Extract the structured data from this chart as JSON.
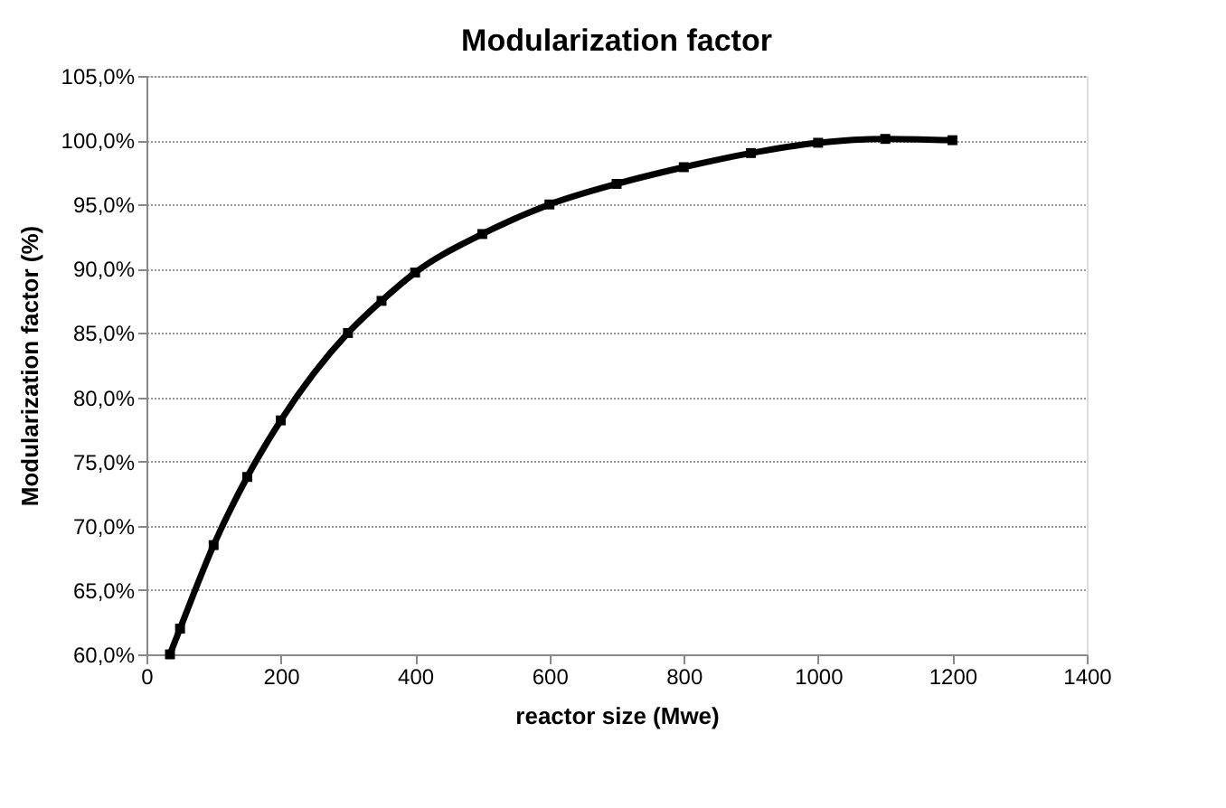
{
  "chart_data": {
    "type": "line",
    "title": "Modularization factor",
    "xlabel": "reactor size (Mwe)",
    "ylabel": "Modularization  factor (%)",
    "x": [
      35,
      50,
      100,
      150,
      200,
      300,
      350,
      400,
      500,
      600,
      700,
      800,
      900,
      1000,
      1100,
      1200
    ],
    "series": [
      {
        "color": "#000000",
        "values": [
          60.0,
          62.0,
          68.5,
          73.8,
          78.2,
          85.0,
          87.5,
          89.7,
          92.7,
          95.0,
          96.6,
          97.9,
          99.0,
          99.8,
          100.1,
          100.0
        ]
      }
    ],
    "xlim": [
      0,
      1400
    ],
    "xticks": [
      0,
      200,
      400,
      600,
      800,
      1000,
      1200,
      1400
    ],
    "ylim": [
      60,
      105
    ],
    "yticks": [
      {
        "value": 60,
        "label": "60,0%"
      },
      {
        "value": 65,
        "label": "65,0%"
      },
      {
        "value": 70,
        "label": "70,0%"
      },
      {
        "value": 75,
        "label": "75,0%"
      },
      {
        "value": 80,
        "label": "80,0%"
      },
      {
        "value": 85,
        "label": "85,0%"
      },
      {
        "value": 90,
        "label": "90,0%"
      },
      {
        "value": 95,
        "label": "95,0%"
      },
      {
        "value": 100,
        "label": "100,0%"
      },
      {
        "value": 105,
        "label": "105,0%"
      }
    ],
    "grid": "y",
    "marker": "square",
    "line_style": "solid"
  }
}
